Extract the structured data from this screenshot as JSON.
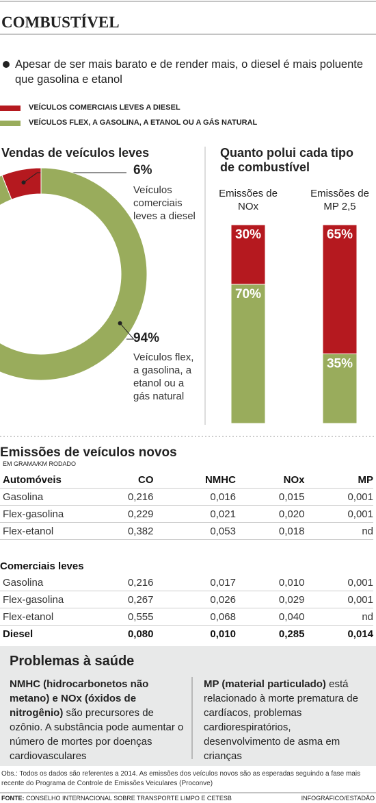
{
  "header": {
    "title": "COMBUSTÍVEL",
    "subtitle": "Apesar de ser mais barato e de render mais, o diesel é mais poluente que gasolina e etanol"
  },
  "chart_data": [
    {
      "type": "pie",
      "donut": true,
      "title": "Vendas de veículos leves",
      "categories": [
        "Veículos comerciais leves a diesel",
        "Veículos flex, a gasolina, a etanol ou a gás natural"
      ],
      "values": [
        6,
        94
      ],
      "value_labels": [
        "6%",
        "94%"
      ],
      "colors": [
        "#b5191f",
        "#99ac5c"
      ]
    },
    {
      "type": "bar",
      "stacked": true,
      "title": "Quanto polui cada tipo de combustível",
      "categories": [
        "Emissões de NOx",
        "Emissões de MP 2,5"
      ],
      "ylim": [
        0,
        100
      ],
      "series": [
        {
          "name": "VEÍCULOS COMERCIAIS LEVES A DIESEL",
          "color": "#b5191f",
          "values": [
            30,
            65
          ],
          "value_labels": [
            "30%",
            "65%"
          ]
        },
        {
          "name": "VEÍCULOS FLEX, A GASOLINA, A ETANOL OU A GÁS NATURAL",
          "color": "#99ac5c",
          "values": [
            70,
            35
          ],
          "value_labels": [
            "70%",
            "35%"
          ]
        }
      ]
    }
  ],
  "table": {
    "title": "Emissões de veículos novos",
    "unit": "EM GRAMA/KM RODADO",
    "columns": [
      "Automóveis",
      "CO",
      "NMHC",
      "NOx",
      "MP"
    ],
    "rows": [
      [
        "Gasolina",
        "0,216",
        "0,016",
        "0,015",
        "0,001"
      ],
      [
        "Flex-gasolina",
        "0,229",
        "0,021",
        "0,020",
        "0,001"
      ],
      [
        "Flex-etanol",
        "0,382",
        "0,053",
        "0,018",
        "nd"
      ]
    ],
    "section2_title": "Comerciais leves",
    "rows2": [
      [
        "Gasolina",
        "0,216",
        "0,017",
        "0,010",
        "0,001"
      ],
      [
        "Flex-gasolina",
        "0,267",
        "0,026",
        "0,029",
        "0,001"
      ],
      [
        "Flex-etanol",
        "0,555",
        "0,068",
        "0,040",
        "nd"
      ],
      [
        "Diesel",
        "0,080",
        "0,010",
        "0,285",
        "0,014"
      ]
    ]
  },
  "health": {
    "title": "Problemas à saúde",
    "left": [
      "NMHC (hidrocarbonetos não metano) e NOx (óxidos de nitrogênio)",
      "são precursores de ozônio. A substância pode aumentar o número de mortes por doenças cardiovasculares"
    ],
    "right": [
      "MP (material particulado)",
      "está relacionado à morte prematura de cardíacos, problemas cardiorespiratórios, desenvolvimento de asma em crianças"
    ]
  },
  "footer": {
    "note": "Obs.: Todos os dados são referentes a 2014. As emissões dos veículos novos são as esperadas seguindo a fase mais recente do Programa de Controle de Emissões Veiculares (Proconve)",
    "source_label": "FONTE:",
    "source": "CONSELHO INTERNACIONAL SOBRE TRANSPORTE LIMPO E CETESB",
    "credit": "INFOGRÁFICO/ESTADÃO"
  }
}
